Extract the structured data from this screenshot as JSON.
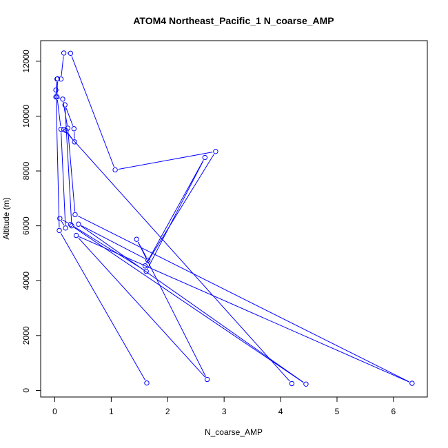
{
  "chart_data": {
    "type": "line+scatter",
    "title": "ATOM4 Northeast_Pacific_1 N_coarse_AMP",
    "xlabel": "N_coarse_AMP",
    "ylabel": "Altitude (m)",
    "xlim": [
      -0.25,
      6.6
    ],
    "ylim": [
      -240,
      12750
    ],
    "xticks": [
      0,
      1,
      2,
      3,
      4,
      5,
      6
    ],
    "yticks": [
      0,
      2000,
      4000,
      6000,
      8000,
      10000,
      12000
    ],
    "color": "#0000FF",
    "points": [
      {
        "x": 1.63,
        "y": 270
      },
      {
        "x": 0.08,
        "y": 5830
      },
      {
        "x": 0.02,
        "y": 10950
      },
      {
        "x": 0.05,
        "y": 11360
      },
      {
        "x": 0.04,
        "y": 10700
      },
      {
        "x": 0.11,
        "y": 9520
      },
      {
        "x": 0.19,
        "y": 5920
      },
      {
        "x": 0.09,
        "y": 6270
      },
      {
        "x": 0.28,
        "y": 6050
      },
      {
        "x": 1.62,
        "y": 4340
      },
      {
        "x": 2.66,
        "y": 8490
      },
      {
        "x": 1.6,
        "y": 4540
      },
      {
        "x": 2.85,
        "y": 8710
      },
      {
        "x": 1.07,
        "y": 8040
      },
      {
        "x": 0.28,
        "y": 12290
      },
      {
        "x": 0.16,
        "y": 12300
      },
      {
        "x": 0.11,
        "y": 11350
      },
      {
        "x": 0.04,
        "y": 11350
      },
      {
        "x": 0.02,
        "y": 10700
      },
      {
        "x": 0.14,
        "y": 10620
      },
      {
        "x": 0.23,
        "y": 9560
      },
      {
        "x": 0.36,
        "y": 6410
      },
      {
        "x": 6.33,
        "y": 260
      },
      {
        "x": 0.38,
        "y": 5650
      },
      {
        "x": 2.7,
        "y": 400
      },
      {
        "x": 1.45,
        "y": 5510
      },
      {
        "x": 1.65,
        "y": 4750
      },
      {
        "x": 0.42,
        "y": 6060
      },
      {
        "x": 4.45,
        "y": 230
      },
      {
        "x": 0.3,
        "y": 6000
      },
      {
        "x": 0.18,
        "y": 10410
      },
      {
        "x": 0.34,
        "y": 9540
      },
      {
        "x": 0.35,
        "y": 9060
      },
      {
        "x": 0.2,
        "y": 9470
      },
      {
        "x": 0.16,
        "y": 9510
      },
      {
        "x": 4.2,
        "y": 250
      }
    ]
  }
}
